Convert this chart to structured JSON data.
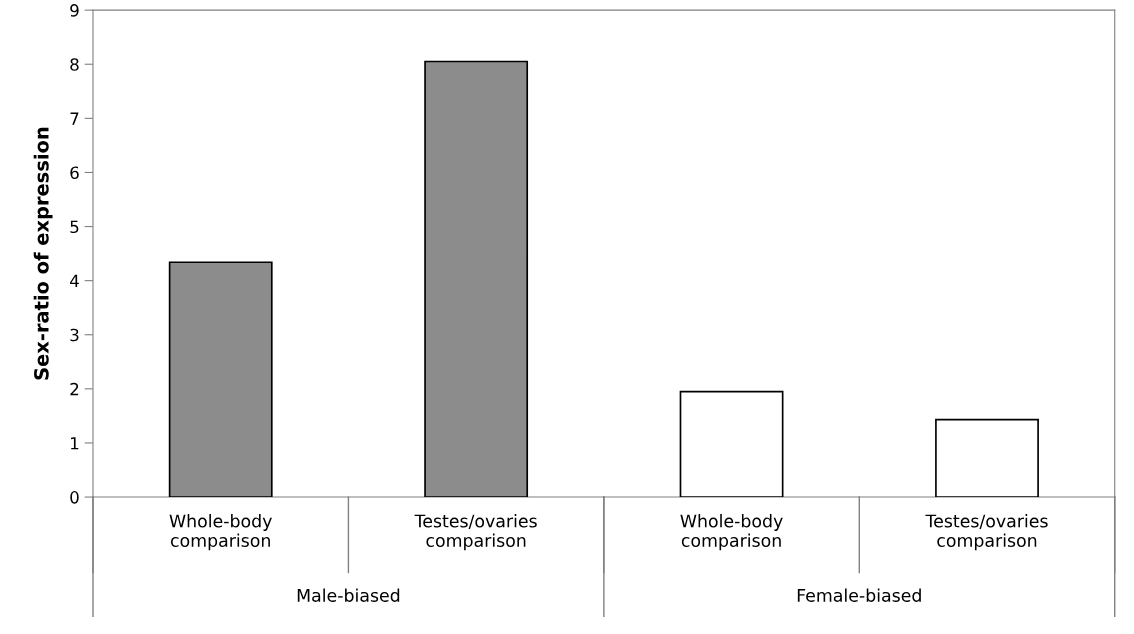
{
  "chart_data": {
    "type": "bar",
    "ylabel": "Sex-ratio of expression",
    "categories": [
      "Whole-body\ncomparison",
      "Testes/ovaries\ncomparison",
      "Whole-body\ncomparison",
      "Testes/ovaries\ncomparison"
    ],
    "values": [
      4.34,
      8.05,
      1.95,
      1.43
    ],
    "colors": [
      "#8c8c8c",
      "#8c8c8c",
      "#ffffff",
      "#ffffff"
    ],
    "ylim": [
      0,
      9
    ],
    "yticks": [
      0,
      1,
      2,
      3,
      4,
      5,
      6,
      7,
      8,
      9
    ],
    "grid": false,
    "legend": false,
    "annotations": [
      "Male-biased",
      "Female-biased"
    ]
  }
}
